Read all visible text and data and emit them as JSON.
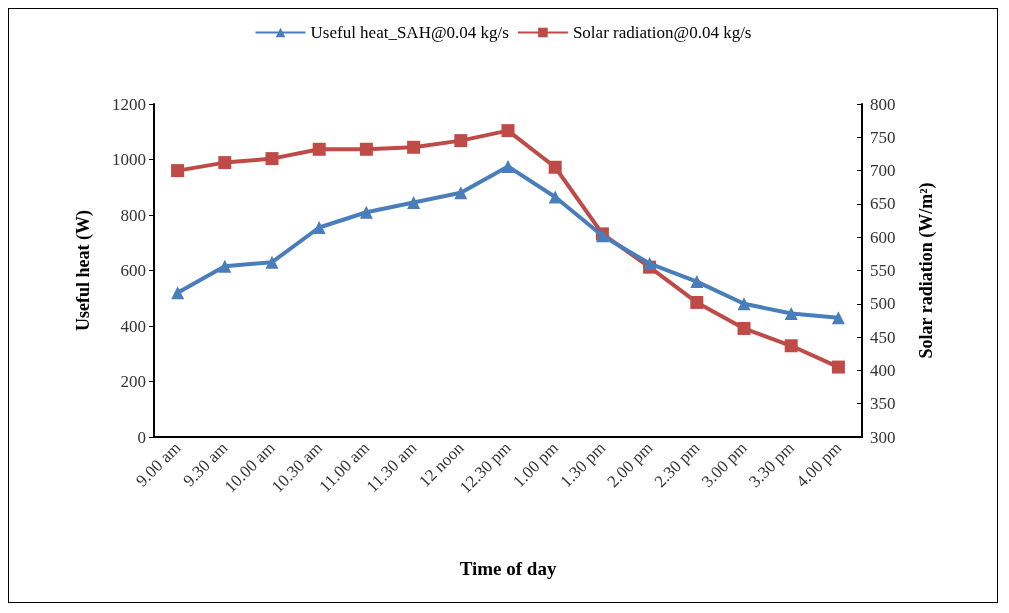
{
  "chart_data": {
    "type": "line",
    "xlabel": "Time of day",
    "ylabel": "Useful heat (W)",
    "y2label": "Solar radiation (W/m²)",
    "categories": [
      "9.00 am",
      "9.30 am",
      "10.00 am",
      "10.30 am",
      "11.00 am",
      "11.30 am",
      "12 noon",
      "12.30 pm",
      "1.00 pm",
      "1.30 pm",
      "2.00 pm",
      "2.30 pm",
      "3.00 pm",
      "3.30 pm",
      "4.00 pm"
    ],
    "series": [
      {
        "name": "Useful heat_SAH@0.04 kg/s",
        "color": "#4a7ebb",
        "marker": "triangle",
        "values": [
          520,
          615,
          630,
          755,
          810,
          845,
          880,
          975,
          865,
          725,
          625,
          560,
          480,
          445,
          430
        ]
      },
      {
        "name": "Solar radiation@0.04 kg/s",
        "color": "#be4b48",
        "marker": "square",
        "axis": "y2",
        "values": [
          700,
          712,
          718,
          732,
          732,
          735,
          745,
          760,
          705,
          605,
          555,
          502,
          463,
          437,
          405
        ]
      }
    ],
    "ylim": [
      0,
      1200
    ],
    "yticks": [
      0,
      200,
      400,
      600,
      800,
      1000,
      1200
    ],
    "y2lim": [
      300,
      800
    ],
    "y2ticks": [
      300,
      350,
      400,
      450,
      500,
      550,
      600,
      650,
      700,
      750,
      800
    ],
    "grid": false,
    "legend": "top",
    "line_style": "solid"
  }
}
